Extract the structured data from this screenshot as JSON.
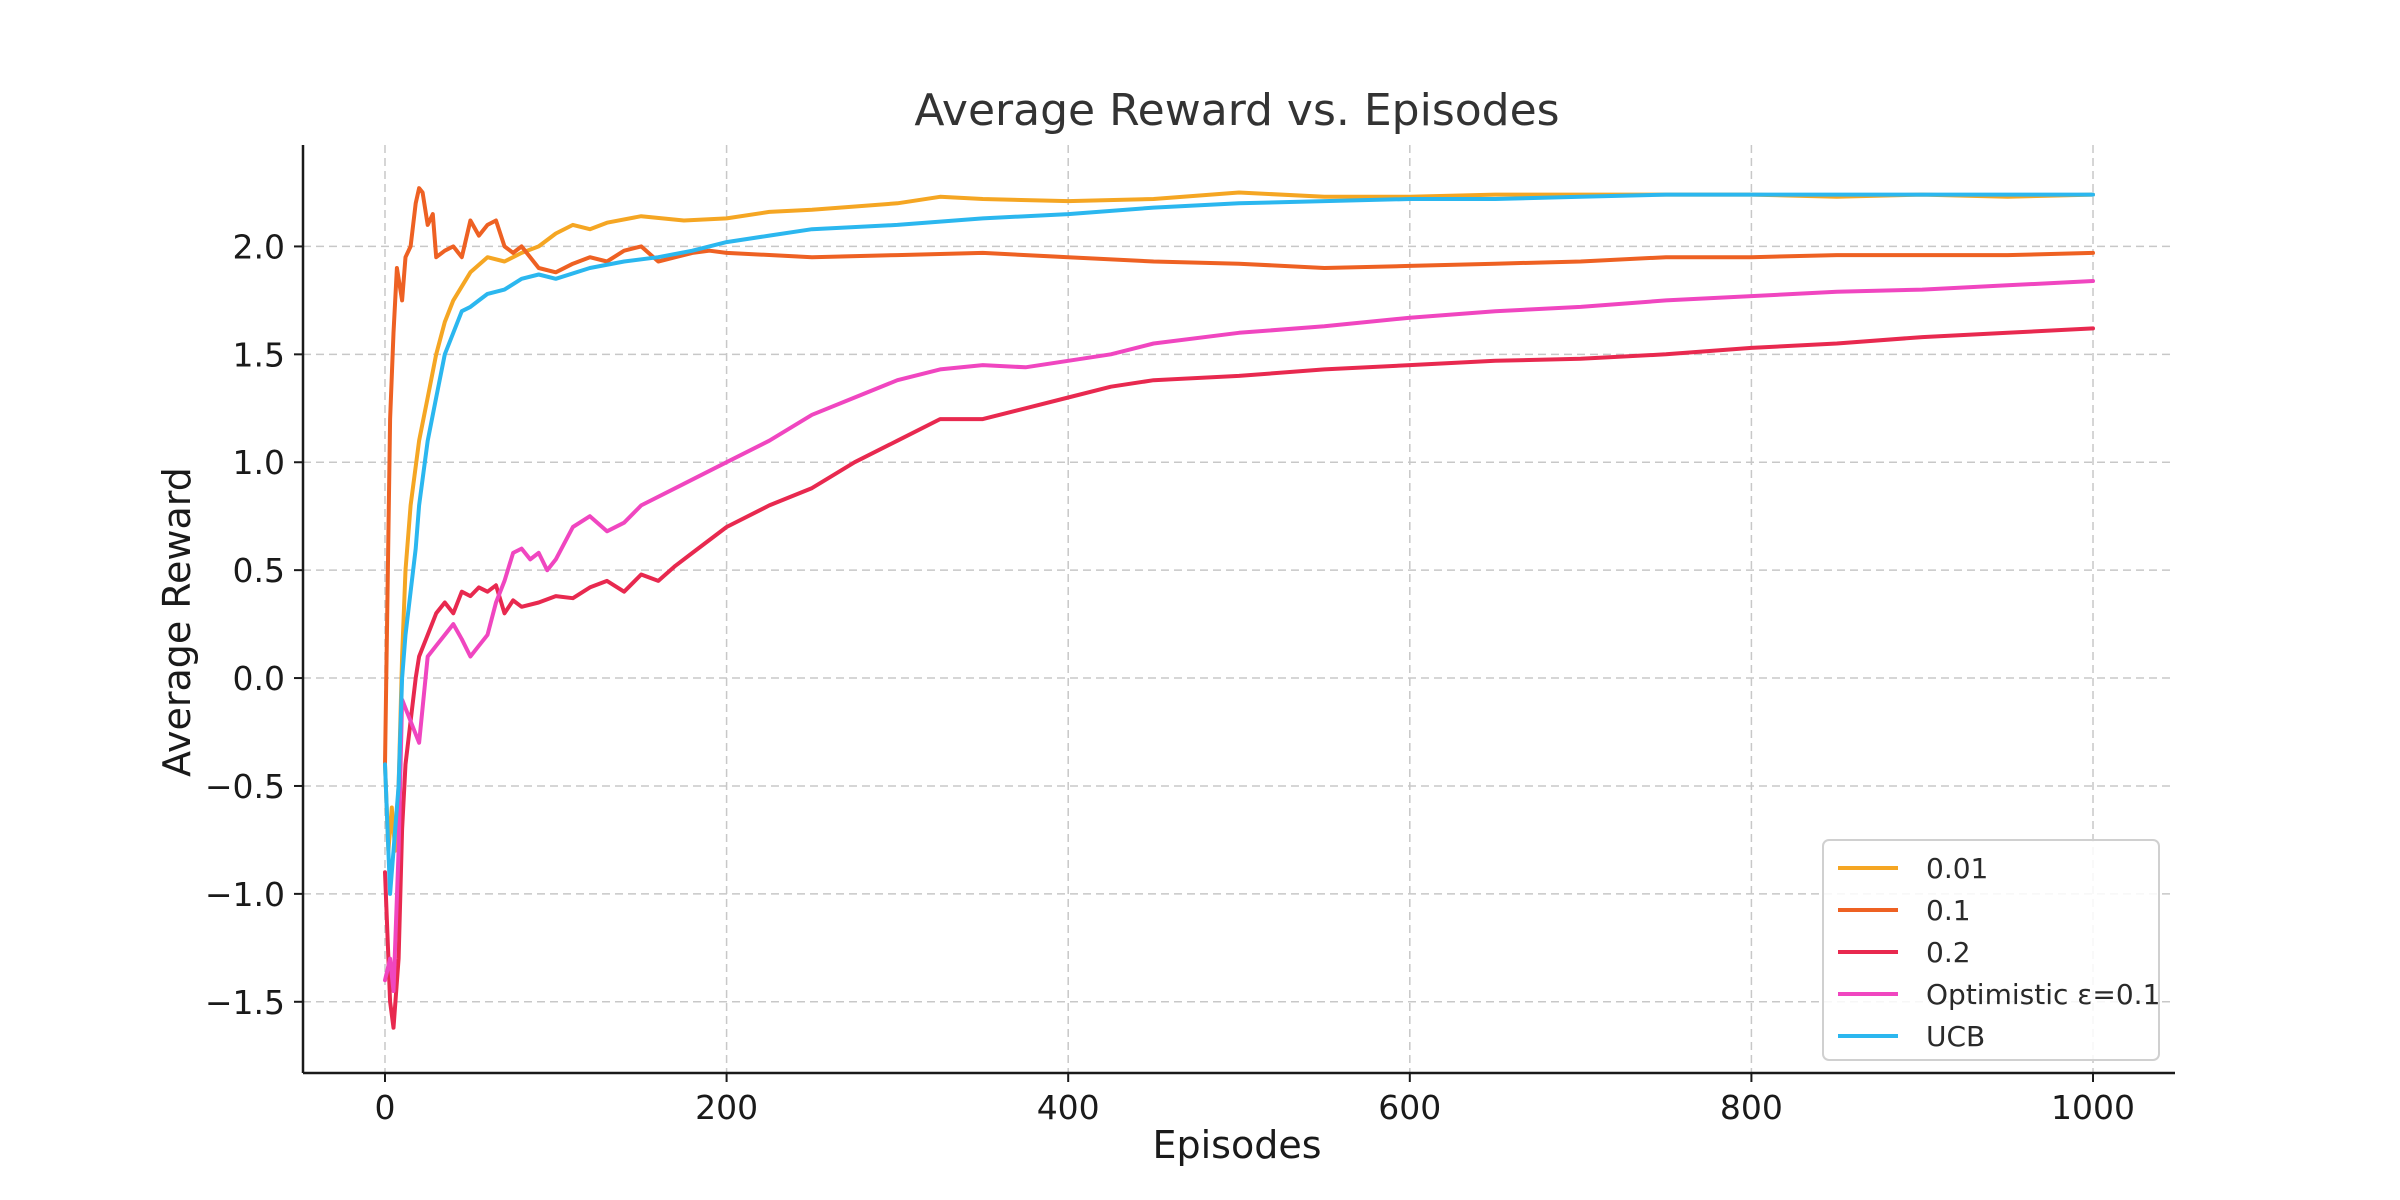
{
  "chart_data": {
    "type": "line",
    "title": "Average Reward vs. Episodes",
    "xlabel": "Episodes",
    "ylabel": "Average Reward",
    "xlim": [
      -48,
      1048
    ],
    "ylim": [
      -1.83,
      2.47
    ],
    "xticks": [
      0,
      200,
      400,
      600,
      800,
      1000
    ],
    "yticks": [
      -1.5,
      -1.0,
      -0.5,
      0.0,
      0.5,
      1.0,
      1.5,
      2.0
    ],
    "ytick_labels": [
      "−1.5",
      "−1.0",
      "−0.5",
      "0.0",
      "0.5",
      "1.0",
      "1.5",
      "2.0"
    ],
    "grid": true,
    "legend_position": "lower-right",
    "series": [
      {
        "name": "0.01",
        "color": "#F5A623",
        "x": [
          0,
          2,
          4,
          6,
          8,
          10,
          12,
          15,
          20,
          25,
          30,
          35,
          40,
          50,
          60,
          70,
          80,
          90,
          100,
          110,
          120,
          130,
          150,
          175,
          200,
          225,
          250,
          300,
          325,
          350,
          400,
          450,
          500,
          550,
          600,
          650,
          700,
          750,
          800,
          850,
          900,
          950,
          1000
        ],
        "y": [
          -0.4,
          -0.8,
          -0.6,
          -0.8,
          -0.5,
          0.1,
          0.5,
          0.8,
          1.1,
          1.3,
          1.5,
          1.65,
          1.75,
          1.88,
          1.95,
          1.93,
          1.97,
          2.0,
          2.06,
          2.1,
          2.08,
          2.11,
          2.14,
          2.12,
          2.13,
          2.16,
          2.17,
          2.2,
          2.23,
          2.22,
          2.21,
          2.22,
          2.25,
          2.23,
          2.23,
          2.24,
          2.24,
          2.24,
          2.24,
          2.23,
          2.24,
          2.23,
          2.24
        ]
      },
      {
        "name": "0.1",
        "color": "#EE6123",
        "x": [
          0,
          3,
          5,
          7,
          10,
          12,
          15,
          18,
          20,
          22,
          25,
          28,
          30,
          35,
          40,
          45,
          50,
          55,
          60,
          65,
          70,
          75,
          80,
          90,
          100,
          110,
          120,
          130,
          140,
          150,
          160,
          170,
          180,
          190,
          200,
          250,
          300,
          350,
          400,
          450,
          500,
          550,
          600,
          650,
          700,
          750,
          800,
          850,
          900,
          950,
          1000
        ],
        "y": [
          -0.4,
          1.2,
          1.6,
          1.9,
          1.75,
          1.95,
          2.0,
          2.2,
          2.27,
          2.25,
          2.1,
          2.15,
          1.95,
          1.98,
          2.0,
          1.95,
          2.12,
          2.05,
          2.1,
          2.12,
          2.0,
          1.97,
          2.0,
          1.9,
          1.88,
          1.92,
          1.95,
          1.93,
          1.98,
          2.0,
          1.93,
          1.95,
          1.97,
          1.98,
          1.97,
          1.95,
          1.96,
          1.97,
          1.95,
          1.93,
          1.92,
          1.9,
          1.91,
          1.92,
          1.93,
          1.95,
          1.95,
          1.96,
          1.96,
          1.96,
          1.97
        ]
      },
      {
        "name": "0.2",
        "color": "#E8294F",
        "x": [
          0,
          3,
          5,
          8,
          10,
          12,
          15,
          18,
          20,
          25,
          30,
          35,
          40,
          45,
          50,
          55,
          60,
          65,
          70,
          75,
          80,
          90,
          100,
          110,
          120,
          130,
          140,
          150,
          160,
          170,
          180,
          200,
          225,
          250,
          275,
          300,
          325,
          350,
          375,
          400,
          425,
          450,
          500,
          550,
          600,
          650,
          700,
          750,
          800,
          850,
          900,
          950,
          1000
        ],
        "y": [
          -0.9,
          -1.5,
          -1.62,
          -1.3,
          -0.7,
          -0.4,
          -0.2,
          0.0,
          0.1,
          0.2,
          0.3,
          0.35,
          0.3,
          0.4,
          0.38,
          0.42,
          0.4,
          0.43,
          0.3,
          0.36,
          0.33,
          0.35,
          0.38,
          0.37,
          0.42,
          0.45,
          0.4,
          0.48,
          0.45,
          0.52,
          0.58,
          0.7,
          0.8,
          0.88,
          1.0,
          1.1,
          1.2,
          1.2,
          1.25,
          1.3,
          1.35,
          1.38,
          1.4,
          1.43,
          1.45,
          1.47,
          1.48,
          1.5,
          1.53,
          1.55,
          1.58,
          1.6,
          1.62
        ]
      },
      {
        "name": "Optimistic ε=0.1",
        "color": "#F046C0",
        "x": [
          0,
          3,
          5,
          8,
          10,
          15,
          20,
          25,
          30,
          35,
          40,
          45,
          50,
          55,
          60,
          65,
          70,
          75,
          80,
          85,
          90,
          95,
          100,
          110,
          120,
          130,
          140,
          150,
          175,
          200,
          225,
          250,
          275,
          300,
          325,
          350,
          375,
          400,
          425,
          450,
          500,
          550,
          600,
          650,
          700,
          750,
          800,
          850,
          900,
          950,
          1000
        ],
        "y": [
          -1.4,
          -1.3,
          -1.45,
          -0.8,
          -0.1,
          -0.2,
          -0.3,
          0.1,
          0.15,
          0.2,
          0.25,
          0.18,
          0.1,
          0.15,
          0.2,
          0.35,
          0.45,
          0.58,
          0.6,
          0.55,
          0.58,
          0.5,
          0.55,
          0.7,
          0.75,
          0.68,
          0.72,
          0.8,
          0.9,
          1.0,
          1.1,
          1.22,
          1.3,
          1.38,
          1.43,
          1.45,
          1.44,
          1.47,
          1.5,
          1.55,
          1.6,
          1.63,
          1.67,
          1.7,
          1.72,
          1.75,
          1.77,
          1.79,
          1.8,
          1.82,
          1.84
        ]
      },
      {
        "name": "UCB",
        "color": "#2BB7EF",
        "x": [
          0,
          3,
          5,
          8,
          10,
          12,
          15,
          18,
          20,
          25,
          30,
          35,
          40,
          45,
          50,
          55,
          60,
          70,
          80,
          90,
          100,
          120,
          140,
          160,
          180,
          200,
          225,
          250,
          300,
          350,
          400,
          450,
          500,
          550,
          600,
          650,
          700,
          750,
          800,
          850,
          900,
          950,
          1000
        ],
        "y": [
          -0.4,
          -1.0,
          -0.8,
          -0.5,
          0.0,
          0.2,
          0.4,
          0.6,
          0.8,
          1.1,
          1.3,
          1.5,
          1.6,
          1.7,
          1.72,
          1.75,
          1.78,
          1.8,
          1.85,
          1.87,
          1.85,
          1.9,
          1.93,
          1.95,
          1.98,
          2.02,
          2.05,
          2.08,
          2.1,
          2.13,
          2.15,
          2.18,
          2.2,
          2.21,
          2.22,
          2.22,
          2.23,
          2.24,
          2.24,
          2.24,
          2.24,
          2.24,
          2.24
        ]
      }
    ]
  }
}
